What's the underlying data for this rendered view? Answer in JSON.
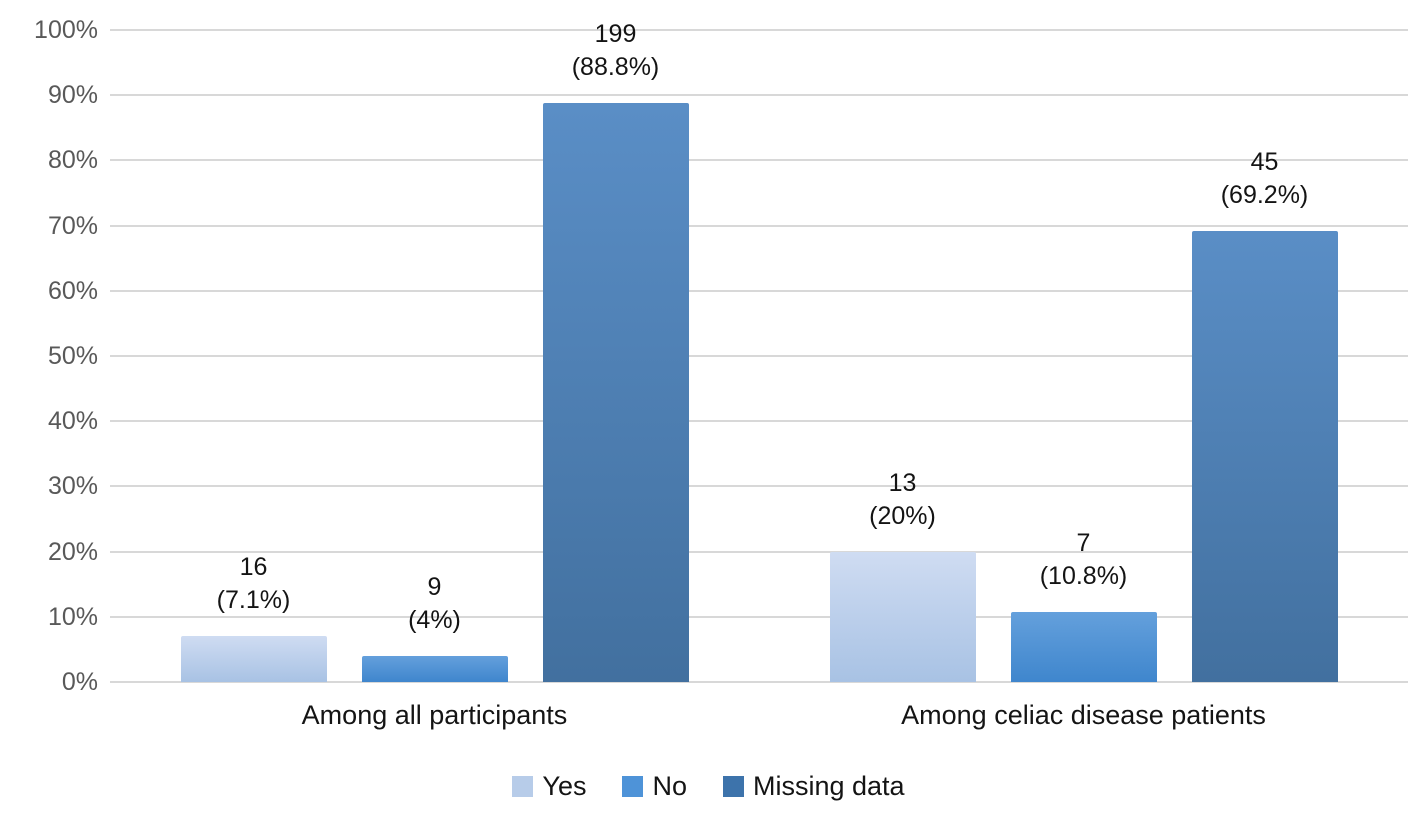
{
  "chart_data": {
    "type": "bar",
    "title": "",
    "xlabel": "",
    "ylabel": "",
    "categories": [
      "Among all participants",
      "Among celiac disease patients"
    ],
    "series": [
      {
        "name": "Yes",
        "values": [
          7.1,
          20
        ],
        "data_labels": [
          [
            "16",
            "(7.1%)"
          ],
          [
            "13",
            "(20%)"
          ]
        ],
        "colors": {
          "top": "#cfdcf2",
          "bottom": "#a8c2e4",
          "legend": "#b7cce9"
        }
      },
      {
        "name": "No",
        "values": [
          4,
          10.8
        ],
        "data_labels": [
          [
            "9",
            "(4%)"
          ],
          [
            "7",
            "(10.8%)"
          ]
        ],
        "colors": {
          "top": "#64a0dc",
          "bottom": "#3f86cd",
          "legend": "#4e93d8"
        }
      },
      {
        "name": "Missing data",
        "values": [
          88.8,
          69.2
        ],
        "data_labels": [
          [
            "199",
            "(88.8%)"
          ],
          [
            "45",
            "(69.2%)"
          ]
        ],
        "colors": {
          "top": "#5a8ec6",
          "bottom": "#42709f",
          "legend": "#3d73ab"
        }
      }
    ],
    "y_ticks": [
      "0%",
      "10%",
      "20%",
      "30%",
      "40%",
      "50%",
      "60%",
      "70%",
      "80%",
      "90%",
      "100%"
    ],
    "ylim": [
      0,
      100
    ],
    "grid": true,
    "legend_position": "bottom"
  },
  "style_colors": {
    "grid": "#d8d8d8",
    "axis_text": "#595959",
    "label_text": "#141414",
    "background": "#ffffff"
  }
}
